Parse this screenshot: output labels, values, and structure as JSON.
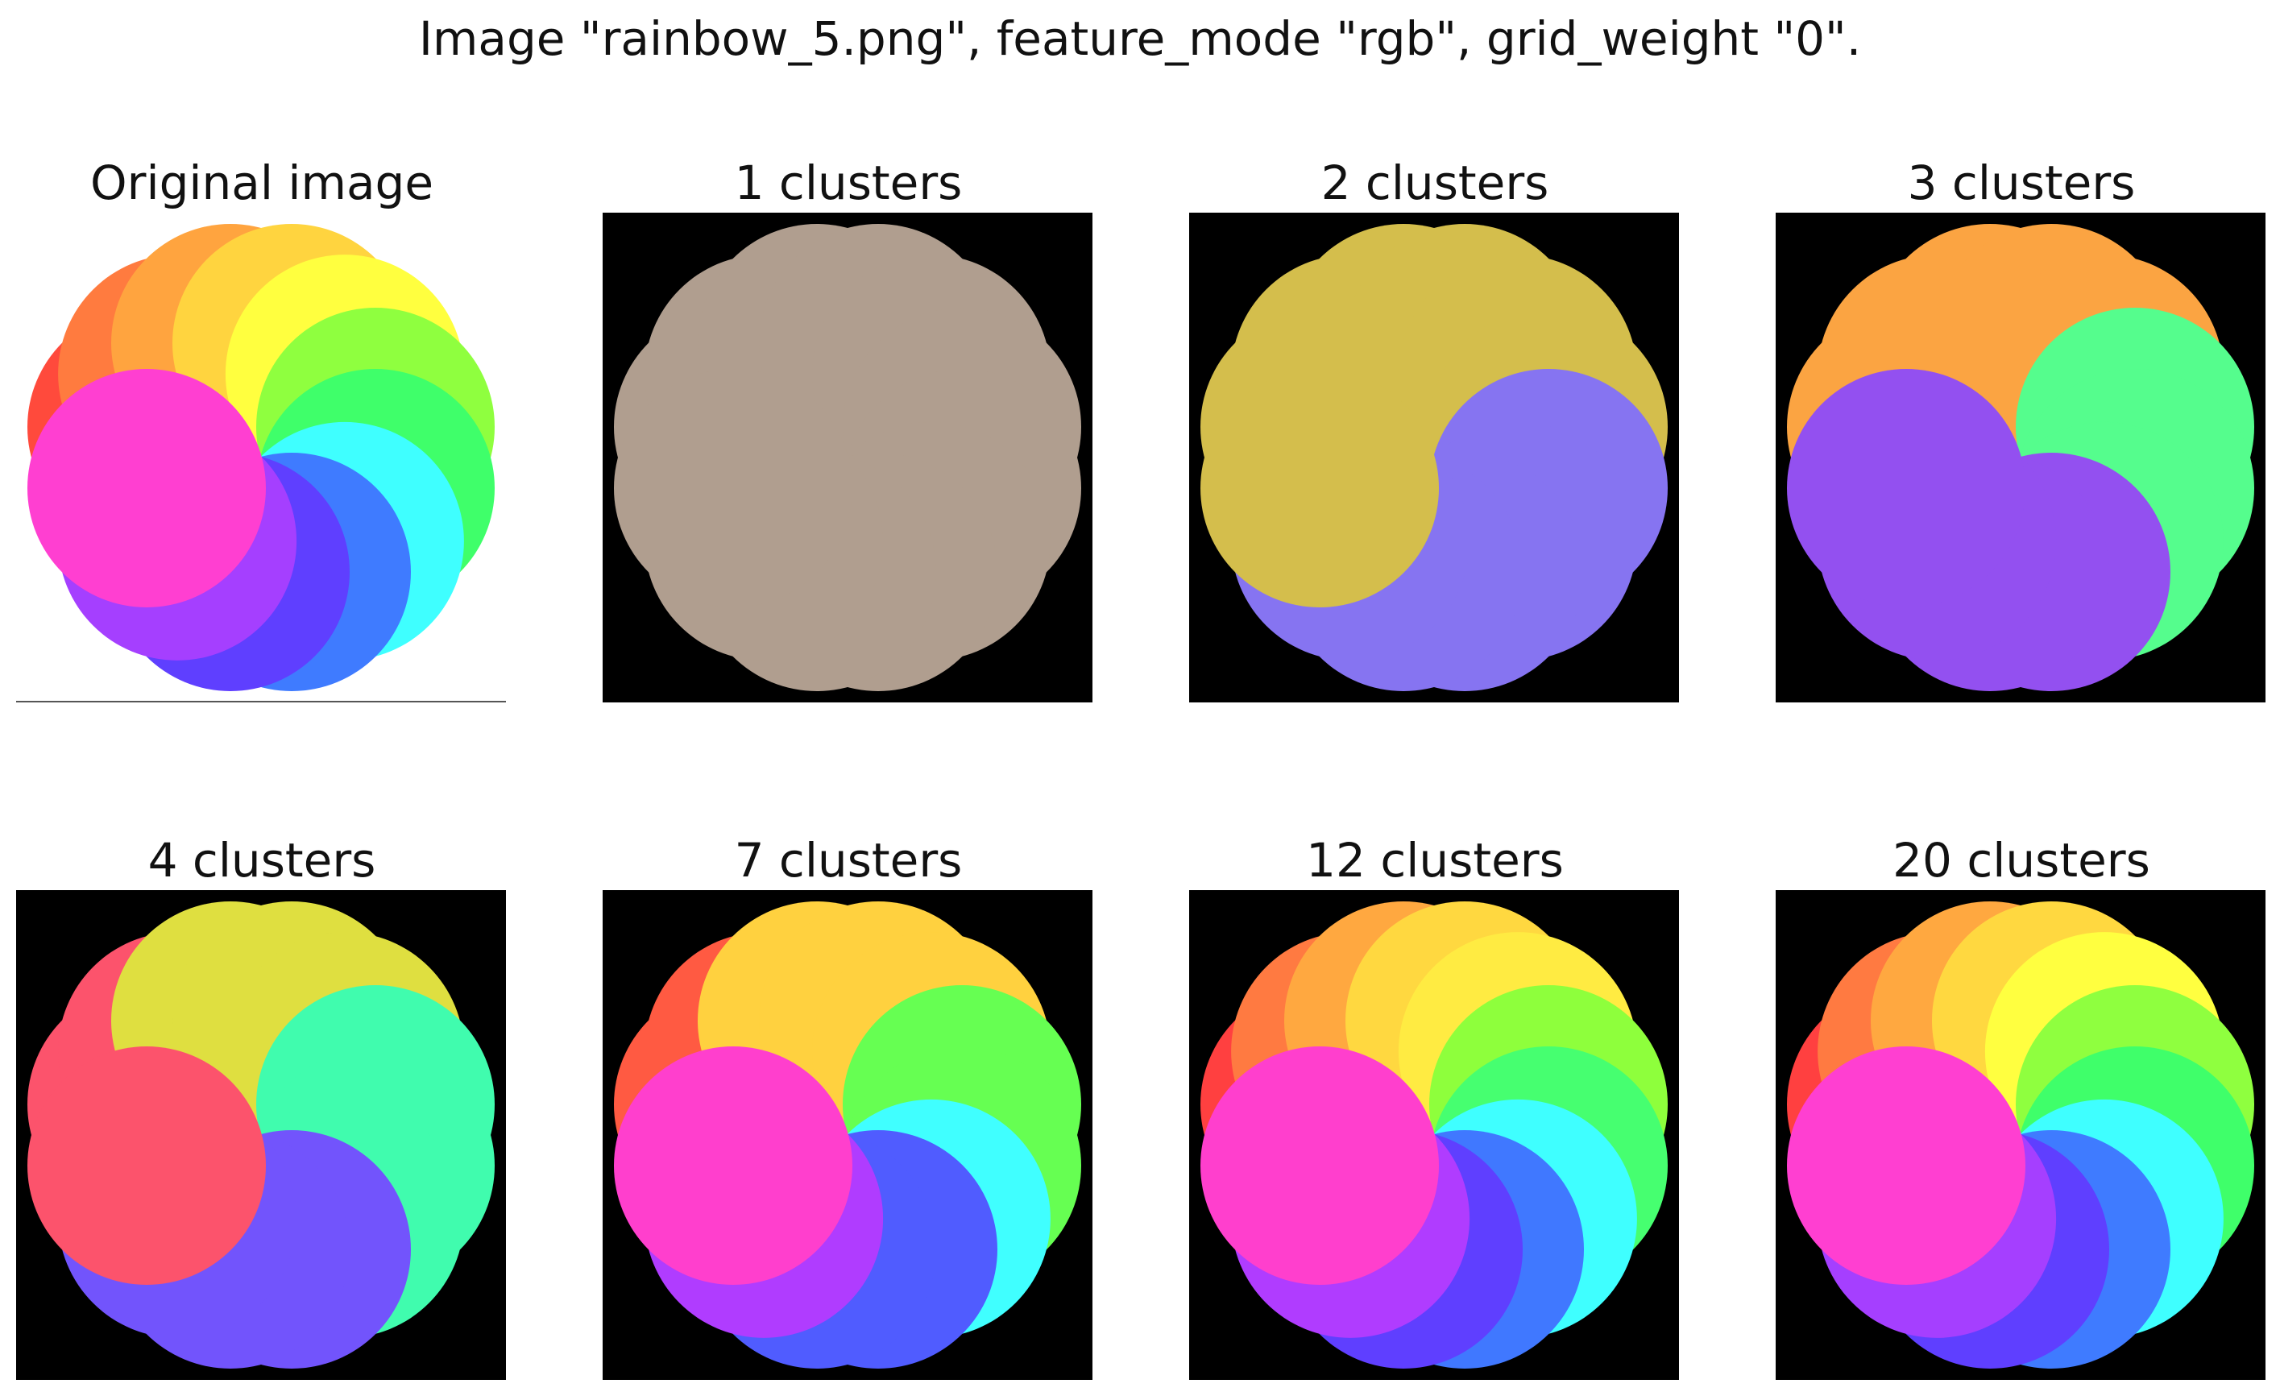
{
  "figure": {
    "suptitle": "Image \"rainbow_5.png\", feature_mode \"rgb\", grid_weight \"0\".",
    "background_color": "#ffffff",
    "panel_background": "#000000"
  },
  "panels": [
    {
      "title": "Original image",
      "kind": "original",
      "palette": [
        "#ff4a3c",
        "#ff7b3f",
        "#ffa43f",
        "#ffd43f",
        "#ffff3f",
        "#8fff3f",
        "#3fff6a",
        "#3fffff",
        "#3f7bff",
        "#5f3fff",
        "#a53fff",
        "#ff3fd1"
      ]
    },
    {
      "title": "1 clusters",
      "kind": "segmented",
      "clusters": 1,
      "palette": [
        "#b09e8f",
        "#b09e8f",
        "#b09e8f",
        "#b09e8f",
        "#b09e8f",
        "#b09e8f",
        "#b09e8f",
        "#b09e8f",
        "#b09e8f",
        "#b09e8f",
        "#b09e8f",
        "#b09e8f"
      ]
    },
    {
      "title": "2 clusters",
      "kind": "segmented",
      "clusters": 2,
      "palette": [
        "#d4be4c",
        "#d4be4c",
        "#d4be4c",
        "#d4be4c",
        "#d4be4c",
        "#d4be4c",
        "#8674f1",
        "#8674f1",
        "#8674f1",
        "#8674f1",
        "#8674f1",
        "#d4be4c"
      ]
    },
    {
      "title": "3 clusters",
      "kind": "segmented",
      "clusters": 3,
      "palette": [
        "#fba442",
        "#fba442",
        "#fba442",
        "#fba442",
        "#fba442",
        "#55fd8d",
        "#55fd8d",
        "#55fd8d",
        "#9350f0",
        "#9350f0",
        "#9350f0",
        "#9350f0"
      ]
    },
    {
      "title": "4 clusters",
      "kind": "segmented",
      "clusters": 4,
      "palette": [
        "#fc536c",
        "#fc536c",
        "#dfdf40",
        "#dfdf40",
        "#dfdf40",
        "#40fcae",
        "#40fcae",
        "#40fcae",
        "#7254fc",
        "#7254fc",
        "#7254fc",
        "#fc536c"
      ]
    },
    {
      "title": "7 clusters",
      "kind": "segmented",
      "clusters": 7,
      "palette": [
        "#ff5a42",
        "#ff5a42",
        "#ffd13f",
        "#ffd13f",
        "#ffd13f",
        "#66ff52",
        "#66ff52",
        "#40ffff",
        "#505cff",
        "#505cff",
        "#b03cff",
        "#ff3fcd"
      ]
    },
    {
      "title": "12 clusters",
      "kind": "segmented",
      "clusters": 12,
      "palette": [
        "#ff4040",
        "#ff7a41",
        "#ffa840",
        "#ffd840",
        "#ffeb42",
        "#8eff3c",
        "#46ff70",
        "#3fffff",
        "#4078ff",
        "#5f3fff",
        "#b03cff",
        "#ff3fcd"
      ]
    },
    {
      "title": "20 clusters",
      "kind": "segmented",
      "clusters": 20,
      "palette": [
        "#ff4040",
        "#ff7a41",
        "#ffa840",
        "#ffd840",
        "#ffff40",
        "#8fff3f",
        "#3fff6a",
        "#3fffff",
        "#3f7bff",
        "#5f3fff",
        "#a53fff",
        "#ff3fd1"
      ]
    }
  ]
}
